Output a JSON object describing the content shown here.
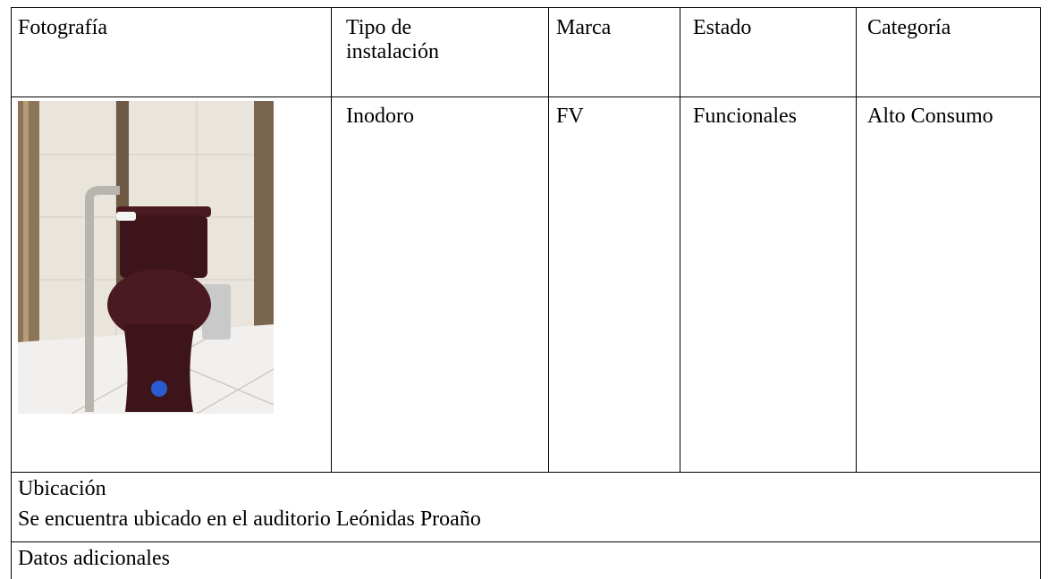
{
  "table": {
    "headers": [
      "Fotografía",
      "Tipo de instalación",
      "Marca",
      "Estado",
      "Categoría"
    ],
    "rows": [
      [
        "Inodoro",
        "FV",
        "Funcionales",
        "Alto Consumo"
      ]
    ]
  },
  "location": {
    "label": "Ubicación",
    "text": "Se encuentra ubicado en el auditorio Leónidas Proaño"
  },
  "additional": {
    "label": "Datos adicionales"
  }
}
